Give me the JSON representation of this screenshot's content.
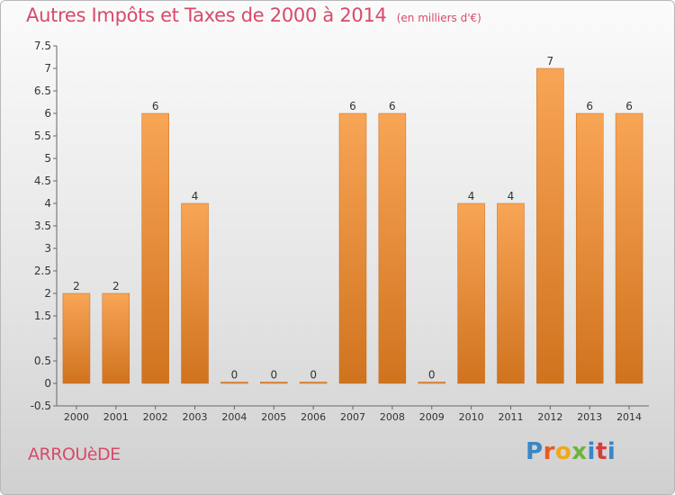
{
  "header": {
    "title": "Autres Impôts et Taxes de 2000 à 2014",
    "unit": "(en milliers d'€)"
  },
  "footer": {
    "commune": "ARROUèDE",
    "logo_letters": [
      "P",
      "r",
      "o",
      "x",
      "i",
      "t",
      "i"
    ],
    "logo_colors": [
      "#3a86c8",
      "#e65a24",
      "#f0a818",
      "#6cb43c",
      "#3a86c8",
      "#d83c3c",
      "#3a86c8"
    ]
  },
  "colors": {
    "bar_light": "#f8a556",
    "bar_dark": "#d0731e",
    "axis_text": "#333333",
    "title": "#d84a6a"
  },
  "chart_data": {
    "type": "bar",
    "title": "Autres Impôts et Taxes de 2000 à 2014",
    "subtitle": "(en milliers d'€)",
    "xlabel": "",
    "ylabel": "",
    "categories": [
      "2000",
      "2001",
      "2002",
      "2003",
      "2004",
      "2005",
      "2006",
      "2007",
      "2008",
      "2009",
      "2010",
      "2011",
      "2012",
      "2013",
      "2014"
    ],
    "values": [
      2,
      2,
      6,
      4,
      0,
      0,
      0,
      6,
      6,
      0,
      4,
      4,
      7,
      6,
      6
    ],
    "data_labels": [
      "2",
      "2",
      "6",
      "4",
      "0",
      "0",
      "0",
      "6",
      "6",
      "0",
      "4",
      "4",
      "7",
      "6",
      "6"
    ],
    "ylim": [
      -0.5,
      7.5
    ],
    "yticks": [
      -0.5,
      0,
      0.5,
      1,
      1.5,
      2,
      2.5,
      3,
      3.5,
      4,
      4.5,
      5,
      5.5,
      6,
      6.5,
      7,
      7.5
    ],
    "ytick_labels": [
      "-0.5",
      "0",
      "0.5",
      "",
      "1.5",
      "2",
      "2.5",
      "3",
      "3.5",
      "4",
      "4.5",
      "5",
      "5.5",
      "6",
      "6.5",
      "7",
      "7.5"
    ],
    "grid": false,
    "legend": "none"
  }
}
